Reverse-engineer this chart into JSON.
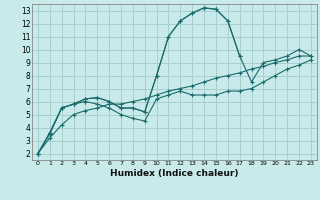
{
  "xlabel": "Humidex (Indice chaleur)",
  "ylabel": "",
  "bg_color": "#c8eaea",
  "grid_color": "#a8cece",
  "line_color": "#1a6b6b",
  "xlim": [
    -0.5,
    23.5
  ],
  "ylim": [
    1.5,
    13.5
  ],
  "xticks": [
    0,
    1,
    2,
    3,
    4,
    5,
    6,
    7,
    8,
    9,
    10,
    11,
    12,
    13,
    14,
    15,
    16,
    17,
    18,
    19,
    20,
    21,
    22,
    23
  ],
  "yticks": [
    2,
    3,
    4,
    5,
    6,
    7,
    8,
    9,
    10,
    11,
    12,
    13
  ],
  "series": [
    [
      2.0,
      3.6,
      5.5,
      5.8,
      6.2,
      6.3,
      6.0,
      5.5,
      5.5,
      5.2,
      8.0,
      11.0,
      12.2,
      12.8,
      13.2,
      13.1,
      12.2,
      9.5,
      null,
      null,
      null,
      null,
      null,
      null
    ],
    [
      2.0,
      3.6,
      5.5,
      5.8,
      6.2,
      6.3,
      6.0,
      5.5,
      5.5,
      5.2,
      8.0,
      11.0,
      12.2,
      12.8,
      13.2,
      13.1,
      12.2,
      9.5,
      7.5,
      9.0,
      9.2,
      9.5,
      10.0,
      9.5
    ],
    [
      2.0,
      3.5,
      5.5,
      5.8,
      6.0,
      5.8,
      5.5,
      5.0,
      4.7,
      4.5,
      6.2,
      6.5,
      6.8,
      6.5,
      6.5,
      6.5,
      6.8,
      6.8,
      7.0,
      7.5,
      8.0,
      8.5,
      8.8,
      9.2
    ],
    [
      2.0,
      3.2,
      4.2,
      5.0,
      5.3,
      5.5,
      5.8,
      5.8,
      6.0,
      6.2,
      6.5,
      6.8,
      7.0,
      7.2,
      7.5,
      7.8,
      8.0,
      8.2,
      8.5,
      8.7,
      9.0,
      9.2,
      9.5,
      9.5
    ]
  ]
}
